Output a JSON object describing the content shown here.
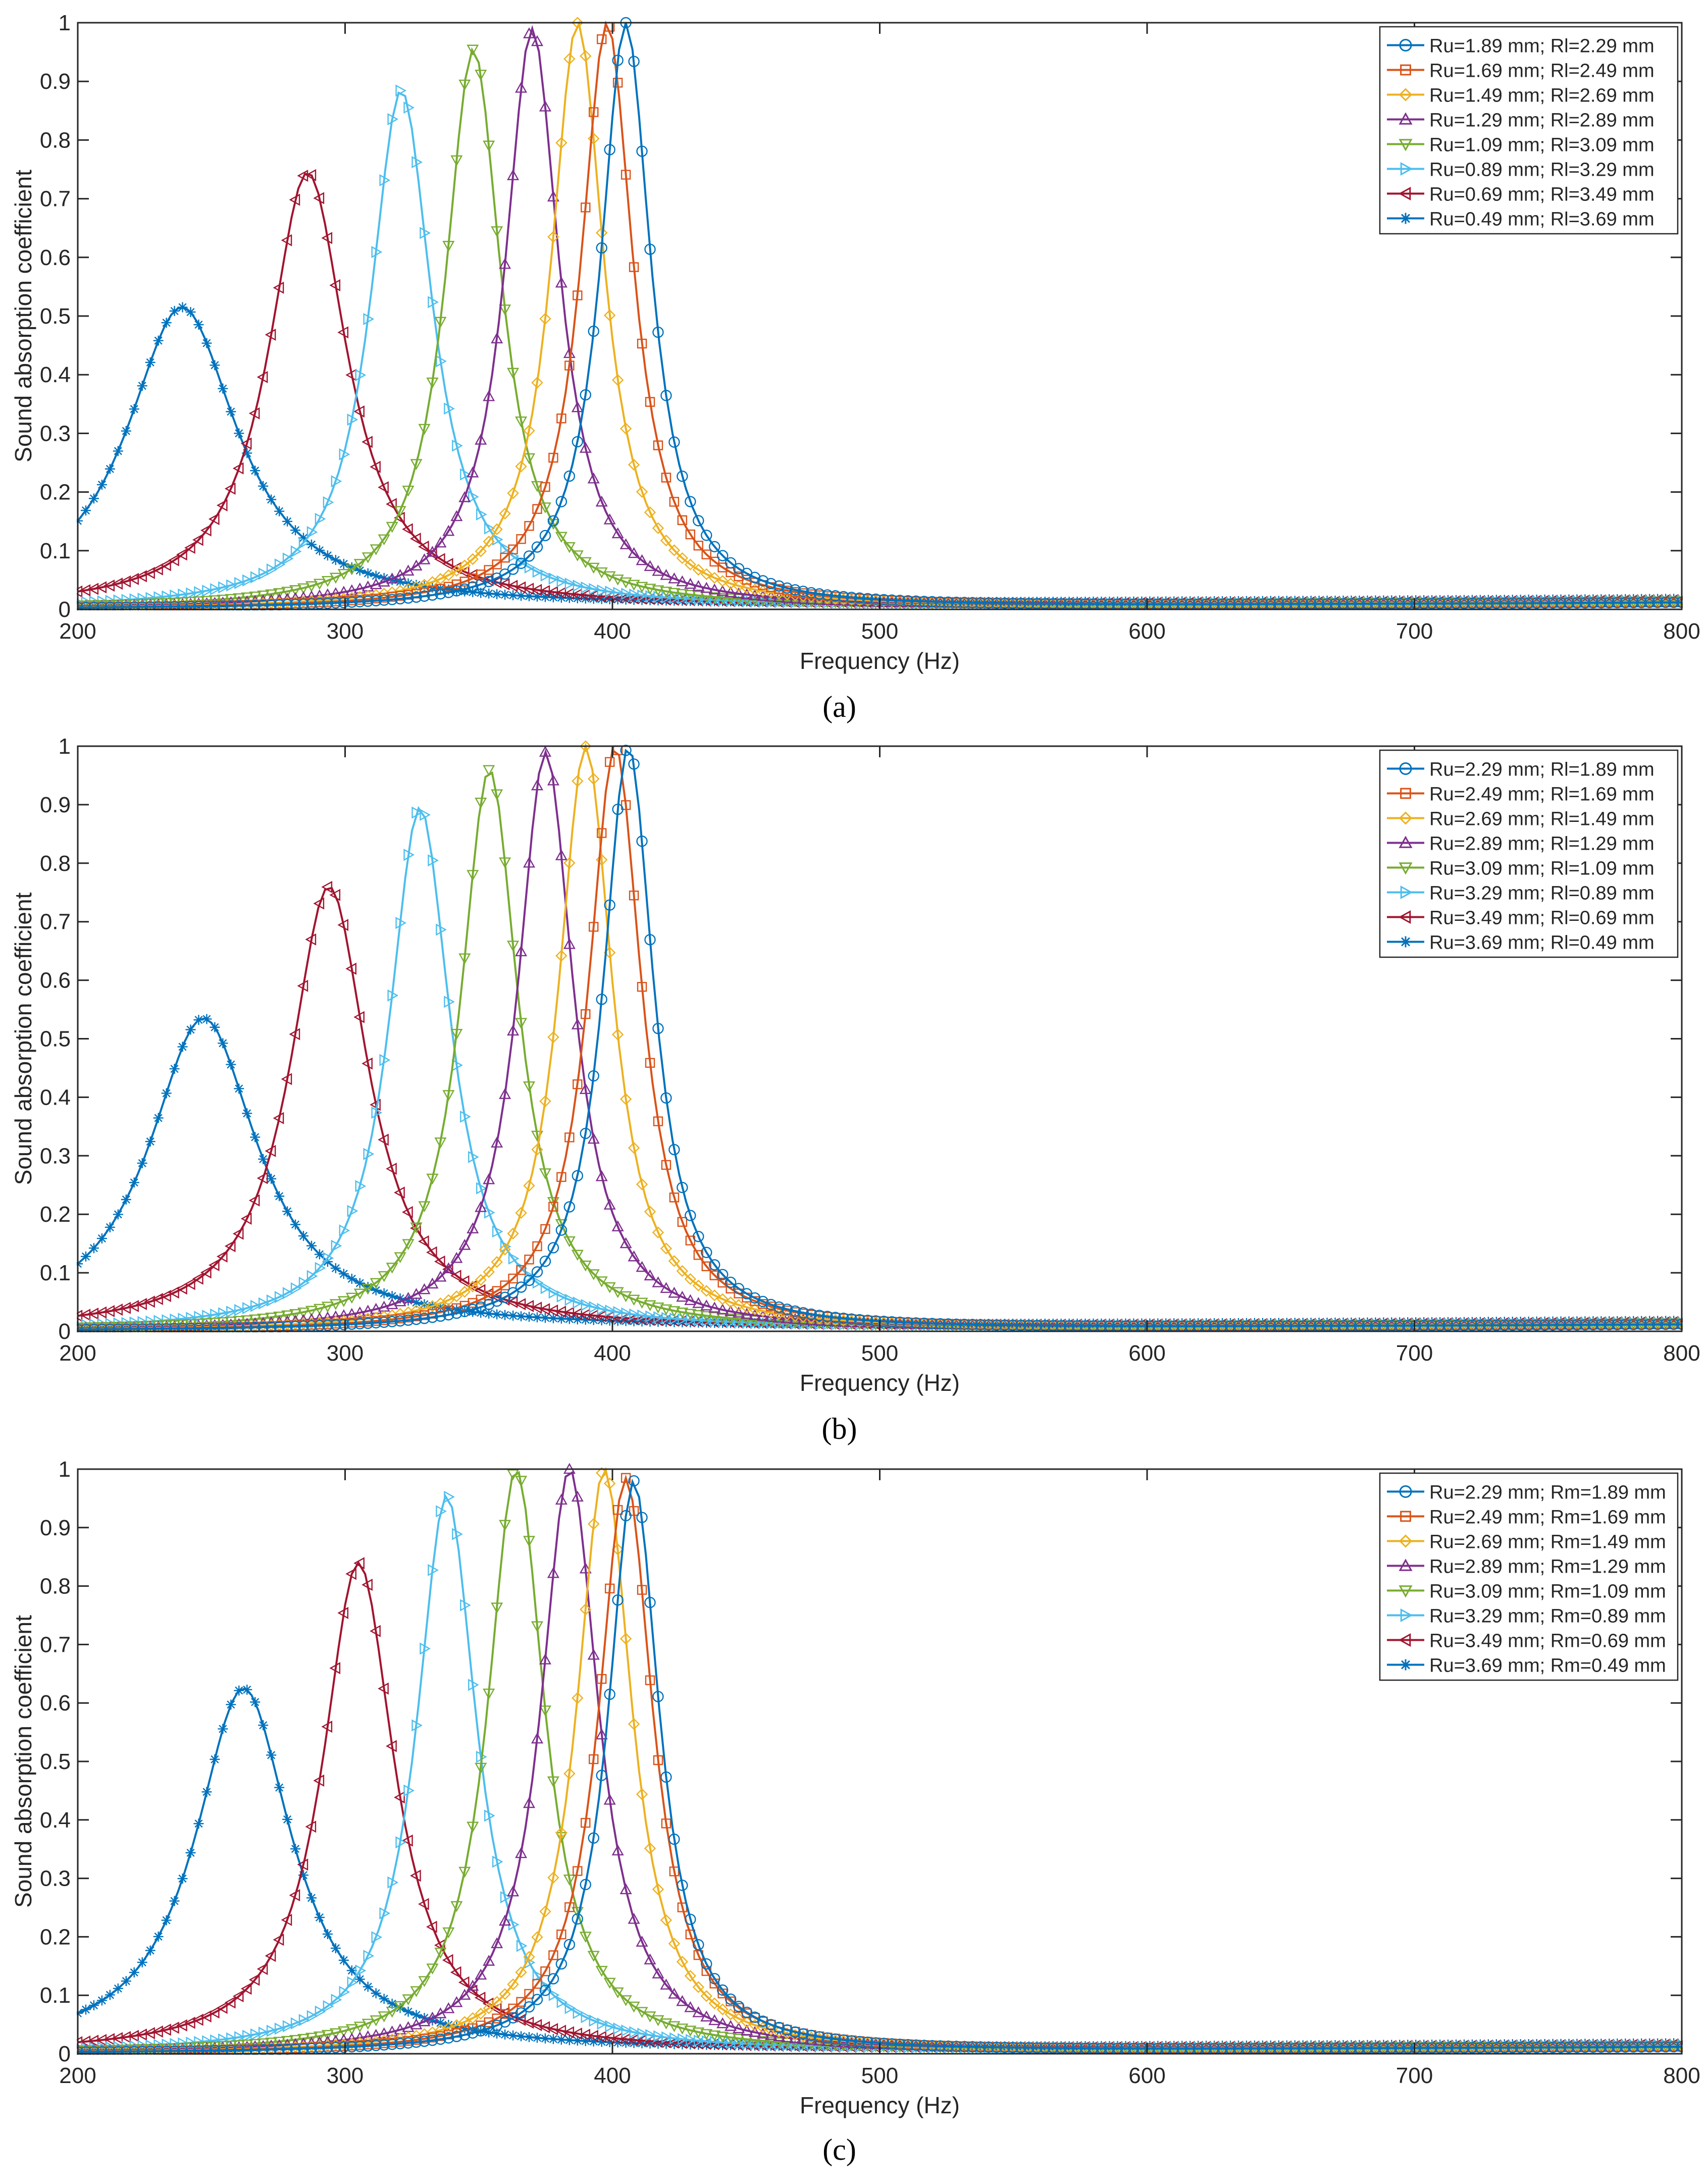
{
  "chart_data": [
    {
      "type": "line",
      "panel_label": "a",
      "caption": "(a)",
      "title": "",
      "xlabel": "Frequency (Hz)",
      "ylabel": "Sound absorption coefficient",
      "xlim": [
        200,
        800
      ],
      "ylim": [
        0,
        1
      ],
      "xticks": [
        200,
        300,
        400,
        500,
        600,
        700,
        800
      ],
      "yticks": [
        0,
        0.1,
        0.2,
        0.3,
        0.4,
        0.5,
        0.6,
        0.7,
        0.8,
        0.9,
        1
      ],
      "ytick_labels": [
        "0",
        "0.1",
        "0.2",
        "0.3",
        "0.4",
        "0.5",
        "0.6",
        "0.7",
        "0.8",
        "0.9",
        "1"
      ],
      "grid": false,
      "legend_position": "top-right",
      "series": [
        {
          "name": "Ru=1.89 mm; Rl=2.29 mm",
          "color": "#0072BD",
          "marker": "circle",
          "peak_freq": 405,
          "peak_value": 1.0,
          "base_value": 0.007,
          "tail_value": 0.012
        },
        {
          "name": "Ru=1.69 mm; Rl=2.49 mm",
          "color": "#D95319",
          "marker": "square",
          "peak_freq": 398,
          "peak_value": 1.0,
          "base_value": 0.008,
          "tail_value": 0.012
        },
        {
          "name": "Ru=1.49 mm; Rl=2.69 mm",
          "color": "#EDB120",
          "marker": "diamond",
          "peak_freq": 387,
          "peak_value": 1.0,
          "base_value": 0.009,
          "tail_value": 0.013
        },
        {
          "name": "Ru=1.29 mm; Rl=2.89 mm",
          "color": "#7E2F8E",
          "marker": "triangle-up",
          "peak_freq": 370,
          "peak_value": 0.99,
          "base_value": 0.011,
          "tail_value": 0.013
        },
        {
          "name": "Ru=1.09 mm; Rl=3.09 mm",
          "color": "#77AC30",
          "marker": "triangle-down",
          "peak_freq": 348,
          "peak_value": 0.955,
          "base_value": 0.014,
          "tail_value": 0.014
        },
        {
          "name": "Ru=0.89 mm; Rl=3.29 mm",
          "color": "#4DBEEE",
          "marker": "triangle-right",
          "peak_freq": 321,
          "peak_value": 0.885,
          "base_value": 0.022,
          "tail_value": 0.015
        },
        {
          "name": "Ru=0.69 mm; Rl=3.49 mm",
          "color": "#A2142F",
          "marker": "triangle-left",
          "peak_freq": 286,
          "peak_value": 0.745,
          "base_value": 0.05,
          "tail_value": 0.016
        },
        {
          "name": "Ru=0.49 mm; Rl=3.69 mm",
          "color": "#0072BD",
          "marker": "star",
          "peak_freq": 239,
          "peak_value": 0.515,
          "base_value": 0.185,
          "tail_value": 0.018
        }
      ]
    },
    {
      "type": "line",
      "panel_label": "b",
      "caption": "(b)",
      "title": "",
      "xlabel": "Frequency (Hz)",
      "ylabel": "Sound absorption coefficient",
      "xlim": [
        200,
        800
      ],
      "ylim": [
        0,
        1
      ],
      "xticks": [
        200,
        300,
        400,
        500,
        600,
        700,
        800
      ],
      "yticks": [
        0,
        0.1,
        0.2,
        0.3,
        0.4,
        0.5,
        0.6,
        0.7,
        0.8,
        0.9,
        1
      ],
      "ytick_labels": [
        "0",
        "0.1",
        "0.2",
        "0.3",
        "0.4",
        "0.5",
        "0.6",
        "0.7",
        "0.8",
        "0.9",
        "1"
      ],
      "grid": false,
      "legend_position": "top-right",
      "series": [
        {
          "name": "Ru=2.29 mm; Rl=1.89 mm",
          "color": "#0072BD",
          "marker": "circle",
          "peak_freq": 406,
          "peak_value": 1.0,
          "base_value": 0.007,
          "tail_value": 0.012
        },
        {
          "name": "Ru=2.49 mm; Rl=1.69 mm",
          "color": "#D95319",
          "marker": "square",
          "peak_freq": 401,
          "peak_value": 1.0,
          "base_value": 0.008,
          "tail_value": 0.012
        },
        {
          "name": "Ru=2.69 mm; Rl=1.49 mm",
          "color": "#EDB120",
          "marker": "diamond",
          "peak_freq": 390,
          "peak_value": 1.0,
          "base_value": 0.009,
          "tail_value": 0.013
        },
        {
          "name": "Ru=2.89 mm; Rl=1.29 mm",
          "color": "#7E2F8E",
          "marker": "triangle-up",
          "peak_freq": 375,
          "peak_value": 0.99,
          "base_value": 0.011,
          "tail_value": 0.013
        },
        {
          "name": "Ru=3.09 mm; Rl=1.09 mm",
          "color": "#77AC30",
          "marker": "triangle-down",
          "peak_freq": 354,
          "peak_value": 0.96,
          "base_value": 0.014,
          "tail_value": 0.014
        },
        {
          "name": "Ru=3.29 mm; Rl=0.89 mm",
          "color": "#4DBEEE",
          "marker": "triangle-right",
          "peak_freq": 328,
          "peak_value": 0.895,
          "base_value": 0.02,
          "tail_value": 0.015
        },
        {
          "name": "Ru=3.49 mm; Rl=0.69 mm",
          "color": "#A2142F",
          "marker": "triangle-left",
          "peak_freq": 294,
          "peak_value": 0.76,
          "base_value": 0.045,
          "tail_value": 0.016
        },
        {
          "name": "Ru=3.69 mm; Rl=0.49 mm",
          "color": "#0072BD",
          "marker": "star",
          "peak_freq": 247,
          "peak_value": 0.535,
          "base_value": 0.15,
          "tail_value": 0.018
        }
      ]
    },
    {
      "type": "line",
      "panel_label": "c",
      "caption": "(c)",
      "title": "",
      "xlabel": "Frequency (Hz)",
      "ylabel": "Sound absorption coefficient",
      "xlim": [
        200,
        800
      ],
      "ylim": [
        0,
        1
      ],
      "xticks": [
        200,
        300,
        400,
        500,
        600,
        700,
        800
      ],
      "yticks": [
        0,
        0.1,
        0.2,
        0.3,
        0.4,
        0.5,
        0.6,
        0.7,
        0.8,
        0.9,
        1
      ],
      "ytick_labels": [
        "0",
        "0.1",
        "0.2",
        "0.3",
        "0.4",
        "0.5",
        "0.6",
        "0.7",
        "0.8",
        "0.9",
        "1"
      ],
      "grid": false,
      "legend_position": "top-right",
      "series": [
        {
          "name": "Ru=2.29 mm; Rm=1.89 mm",
          "color": "#0072BD",
          "marker": "circle",
          "peak_freq": 408,
          "peak_value": 0.98,
          "base_value": 0.007,
          "tail_value": 0.012
        },
        {
          "name": "Ru=2.49 mm; Rm=1.69 mm",
          "color": "#D95319",
          "marker": "square",
          "peak_freq": 405,
          "peak_value": 0.985,
          "base_value": 0.008,
          "tail_value": 0.012
        },
        {
          "name": "Ru=2.69 mm; Rm=1.49 mm",
          "color": "#EDB120",
          "marker": "diamond",
          "peak_freq": 397,
          "peak_value": 1.0,
          "base_value": 0.009,
          "tail_value": 0.013
        },
        {
          "name": "Ru=2.89 mm; Rm=1.29 mm",
          "color": "#7E2F8E",
          "marker": "triangle-up",
          "peak_freq": 384,
          "peak_value": 1.0,
          "base_value": 0.011,
          "tail_value": 0.013
        },
        {
          "name": "Ru=3.09 mm; Rm=1.09 mm",
          "color": "#77AC30",
          "marker": "triangle-down",
          "peak_freq": 364,
          "peak_value": 1.0,
          "base_value": 0.013,
          "tail_value": 0.014
        },
        {
          "name": "Ru=3.29 mm; Rm=0.89 mm",
          "color": "#4DBEEE",
          "marker": "triangle-right",
          "peak_freq": 338,
          "peak_value": 0.955,
          "base_value": 0.018,
          "tail_value": 0.015
        },
        {
          "name": "Ru=3.49 mm; Rm=0.69 mm",
          "color": "#A2142F",
          "marker": "triangle-left",
          "peak_freq": 305,
          "peak_value": 0.84,
          "base_value": 0.035,
          "tail_value": 0.016
        },
        {
          "name": "Ru=3.69 mm; Rm=0.49 mm",
          "color": "#0072BD",
          "marker": "star",
          "peak_freq": 262,
          "peak_value": 0.625,
          "base_value": 0.1,
          "tail_value": 0.018
        }
      ]
    }
  ]
}
